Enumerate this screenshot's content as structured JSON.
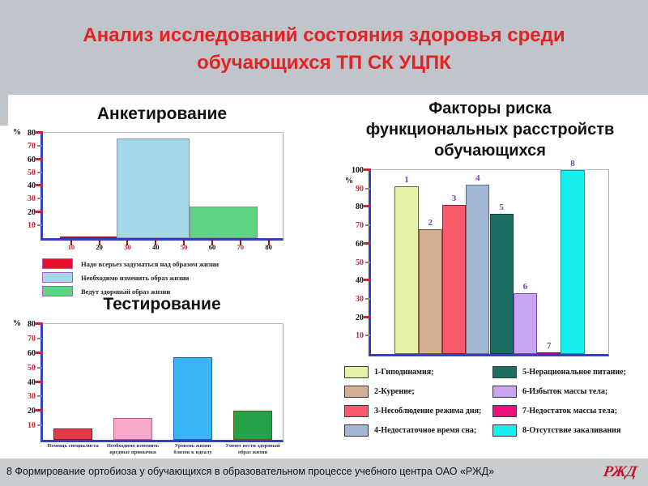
{
  "slide": {
    "title": "Анализ исследований состояния здоровья среди обучающихся ТП СК УЦПК",
    "footer_text": "8 Формирование ортобиоза у обучающихся в образовательном процессе учебного центра ОАО «РЖД»",
    "logo_text": "РЖД"
  },
  "colors": {
    "band_gray": "#c0c5cb",
    "title_red": "#e32222",
    "axis_blue": "#3340c0",
    "tick_red": "#cc2233",
    "bar_number_purple": "#7b3fae",
    "logo_red": "#c8102e"
  },
  "chart_data": [
    {
      "type": "bar",
      "title": "Анкетирование",
      "xlabel": "",
      "ylabel": "%",
      "ylim": [
        0,
        80
      ],
      "yticks": [
        10,
        20,
        30,
        40,
        50,
        60,
        70,
        80
      ],
      "xlim": [
        0,
        85
      ],
      "xticks": [
        10,
        20,
        30,
        40,
        50,
        60,
        70,
        80
      ],
      "grid": false,
      "legend_position": "below",
      "bars": [
        {
          "label": "Надо всерьез задуматься над образом жизни",
          "x_from": 6,
          "x_to": 26,
          "value": 1,
          "color": "#e8112d",
          "border": "#9a1030"
        },
        {
          "label": "Необходимо изменить образ жизни",
          "x_from": 26,
          "x_to": 52,
          "value": 76,
          "color": "#a5d7eb",
          "border": "#8a95a8"
        },
        {
          "label": "Ведут здоровый образ жизни",
          "x_from": 52,
          "x_to": 76,
          "value": 24,
          "color": "#5ed583",
          "border": "#80958a"
        }
      ],
      "legend": {
        "swatch_border": "#a85ab8",
        "columns": [
          [
            {
              "color": "#e8112d",
              "label": "Надо всерьез задуматься над образом жизни"
            },
            {
              "color": "#a5d7eb",
              "label": "Необходимо изменить образ жизни"
            },
            {
              "color": "#5ed583",
              "label": "Ведут здоровый образ жизни"
            }
          ]
        ]
      }
    },
    {
      "type": "bar",
      "title": "Тестирование",
      "xlabel": "",
      "ylabel": "%",
      "ylim": [
        0,
        80
      ],
      "yticks": [
        10,
        20,
        30,
        40,
        50,
        60,
        70,
        80
      ],
      "grid": false,
      "categories": [
        "Помощь специалиста",
        "Необходимо изменить\nвредные привычки",
        "Уровень жизни\nблизок к идеалу",
        "Умеют вести здоровый\nобраз жизни"
      ],
      "values": [
        8,
        15,
        57,
        20
      ],
      "colors": [
        "#e2394b",
        "#f7a9c7",
        "#3ab5f5",
        "#25a148"
      ],
      "borders": [
        "#8a1525",
        "#c05a85",
        "#1565c0",
        "#5a5a20"
      ]
    },
    {
      "type": "bar",
      "title": "Факторы риска\nфункциональных расстройств\nобучающихся",
      "xlabel": "",
      "ylabel": "%",
      "ylim": [
        0,
        100
      ],
      "yticks": [
        10,
        20,
        30,
        40,
        50,
        60,
        70,
        80,
        90,
        100
      ],
      "grid": false,
      "slots": 10,
      "number_color": "#7b3fae",
      "legend_position": "below",
      "bars": [
        {
          "slot": 1,
          "number": "1",
          "value": 91,
          "color": "#e6f2a6",
          "border": "#6a6a4a",
          "label": "1-Гиподинамия;"
        },
        {
          "slot": 2,
          "number": "2",
          "value": 68,
          "color": "#d4ad92",
          "border": "#7a5a45",
          "label": "2-Курение;"
        },
        {
          "slot": 3,
          "number": "3",
          "value": 81,
          "color": "#f9586d",
          "border": "#8a2535",
          "label": "3-Несоблюдение режима дня;"
        },
        {
          "slot": 4,
          "number": "4",
          "value": 92,
          "color": "#a3b6d4",
          "border": "#5a6a85",
          "label": "4-Недостаточное время сна;"
        },
        {
          "slot": 5,
          "number": "5",
          "value": 76,
          "color": "#1d6e62",
          "border": "#10453e",
          "label": "5-Нерациональное питание;"
        },
        {
          "slot": 6,
          "number": "6",
          "value": 33,
          "color": "#c8a5ef",
          "border": "#7a4aa5",
          "label": "6-Избыток массы тела;"
        },
        {
          "slot": 7,
          "number": "7",
          "value": 1,
          "color": "#ef0f7f",
          "border": "#a50a58",
          "label": "7-Недостаток массы тела;"
        },
        {
          "slot": 8,
          "number": "8",
          "value": 100,
          "color": "#16efef",
          "border": "#0a9aa0",
          "label": "8-Отсутствие закаливания"
        }
      ],
      "legend": {
        "swatch_border": "#3a3a3a",
        "columns": [
          [
            {
              "color": "#e6f2a6",
              "label": "1-Гиподинамия;"
            },
            {
              "color": "#d4ad92",
              "label": "2-Курение;"
            },
            {
              "color": "#f9586d",
              "label": "3-Несоблюдение режима дня;"
            },
            {
              "color": "#a3b6d4",
              "label": "4-Недостаточное время сна;"
            }
          ],
          [
            {
              "color": "#1d6e62",
              "label": "5-Нерациональное питание;"
            },
            {
              "color": "#c8a5ef",
              "label": "6-Избыток массы тела;"
            },
            {
              "color": "#ef0f7f",
              "label": "7-Недостаток массы тела;"
            },
            {
              "color": "#16efef",
              "label": "8-Отсутствие закаливания"
            }
          ]
        ]
      }
    }
  ]
}
